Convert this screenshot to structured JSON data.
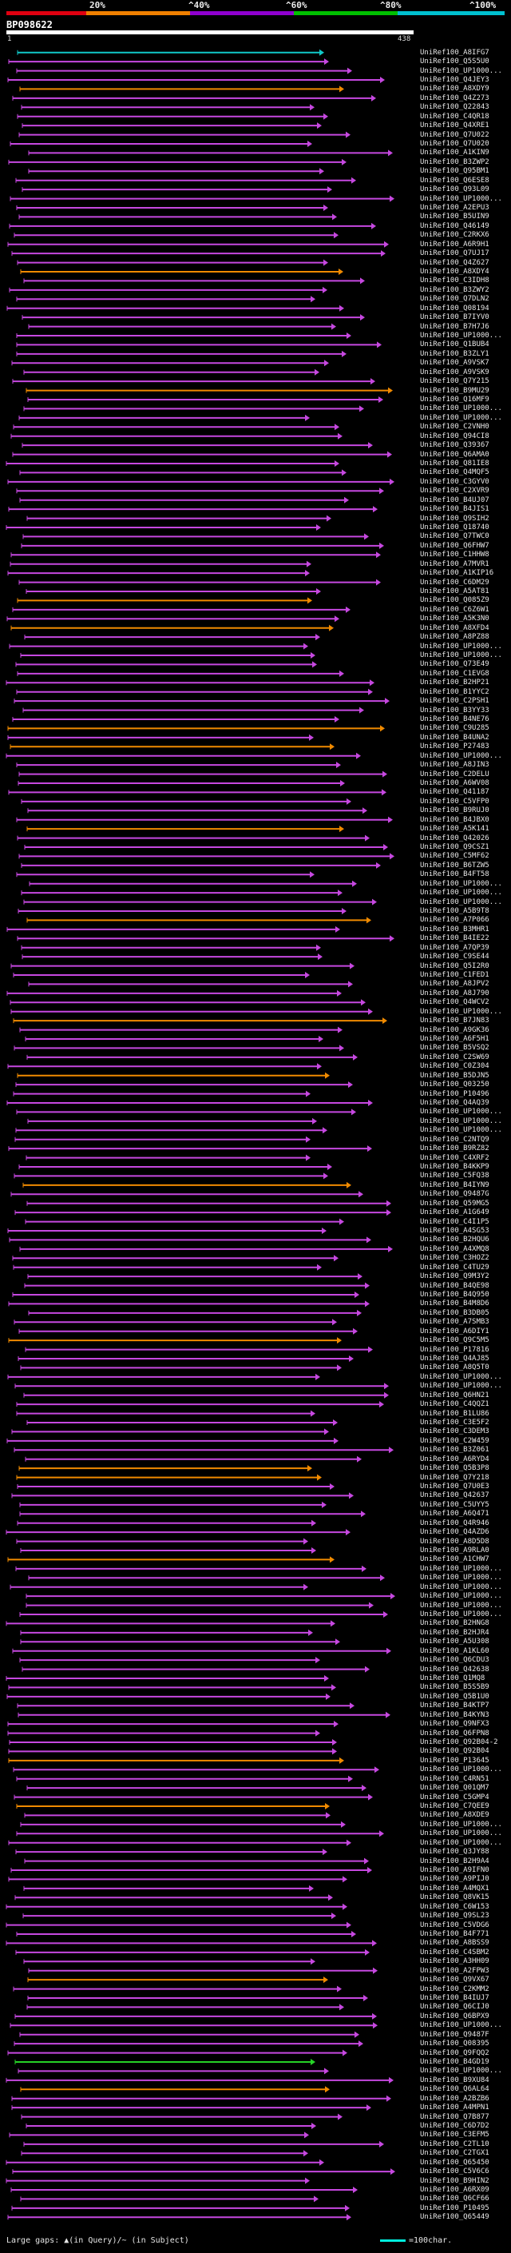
{
  "header": {
    "scale_labels": [
      "20%",
      "^40%",
      "^60%",
      "^80%",
      "^100%"
    ],
    "scale_colors": [
      "#e00010",
      "#f08000",
      "#9000d0",
      "#00c000",
      "#00c0d0"
    ],
    "query_id": "BP098622",
    "query_start": "1",
    "query_end": "438"
  },
  "hits": [
    {
      "name": "UniRef100_A8IFG7",
      "color": "#11c9c9"
    },
    {
      "name": "UniRef100_Q5S5U0",
      "color": "#c648e0"
    },
    {
      "name": "UniRef100_UP1000...",
      "color": "#c648e0"
    },
    {
      "name": "UniRef100_Q4JEY3",
      "color": "#c648e0"
    },
    {
      "name": "UniRef100_A8XDY9",
      "color": "#f08a00"
    },
    {
      "name": "UniRef100_Q4Z273",
      "color": "#c648e0"
    },
    {
      "name": "UniRef100_Q22843",
      "color": "#c648e0"
    },
    {
      "name": "UniRef100_C4QR18",
      "color": "#c648e0"
    },
    {
      "name": "UniRef100_Q4XRE1",
      "color": "#c648e0"
    },
    {
      "name": "UniRef100_Q7U022",
      "color": "#c648e0"
    },
    {
      "name": "UniRef100_Q7U020",
      "color": "#c648e0"
    },
    {
      "name": "UniRef100_A1KIN9",
      "color": "#c648e0"
    },
    {
      "name": "UniRef100_B3ZWP2",
      "color": "#c648e0"
    },
    {
      "name": "UniRef100_Q95BM1",
      "color": "#c648e0"
    },
    {
      "name": "UniRef100_Q6ESE8",
      "color": "#c648e0"
    },
    {
      "name": "UniRef100_Q93L09",
      "color": "#c648e0"
    },
    {
      "name": "UniRef100_UP1000...",
      "color": "#c648e0"
    },
    {
      "name": "UniRef100_A2EPU3",
      "color": "#c648e0"
    },
    {
      "name": "UniRef100_B5UIN9",
      "color": "#c648e0"
    },
    {
      "name": "UniRef100_Q46149",
      "color": "#c648e0"
    },
    {
      "name": "UniRef100_C2RKX6",
      "color": "#c648e0"
    },
    {
      "name": "UniRef100_A6R9H1",
      "color": "#c648e0"
    },
    {
      "name": "UniRef100_Q7UJ17",
      "color": "#c648e0"
    },
    {
      "name": "UniRef100_Q4Z627",
      "color": "#c648e0"
    },
    {
      "name": "UniRef100_A8XDY4",
      "color": "#f08a00"
    },
    {
      "name": "UniRef100_C3IDH8",
      "color": "#c648e0"
    },
    {
      "name": "UniRef100_B3ZWY2",
      "color": "#c648e0"
    },
    {
      "name": "UniRef100_Q7DLN2",
      "color": "#c648e0"
    },
    {
      "name": "UniRef100_Q08194",
      "color": "#c648e0"
    },
    {
      "name": "UniRef100_B7IYV0",
      "color": "#c648e0"
    },
    {
      "name": "UniRef100_B7H7J6",
      "color": "#c648e0"
    },
    {
      "name": "UniRef100_UP1000...",
      "color": "#c648e0"
    },
    {
      "name": "UniRef100_Q1BUB4",
      "color": "#c648e0"
    },
    {
      "name": "UniRef100_B3ZLY1",
      "color": "#c648e0"
    },
    {
      "name": "UniRef100_A9VSK7",
      "color": "#c648e0"
    },
    {
      "name": "UniRef100_A9VSK9",
      "color": "#c648e0"
    },
    {
      "name": "UniRef100_Q7Y215",
      "color": "#c648e0"
    },
    {
      "name": "UniRef100_B9MU29",
      "color": "#f08a00"
    },
    {
      "name": "UniRef100_Q16MF9",
      "color": "#c648e0"
    },
    {
      "name": "UniRef100_UP1000...",
      "color": "#c648e0"
    },
    {
      "name": "UniRef100_UP1000...",
      "color": "#c648e0"
    },
    {
      "name": "UniRef100_C2VNH0",
      "color": "#c648e0"
    },
    {
      "name": "UniRef100_Q94CI8",
      "color": "#c648e0"
    },
    {
      "name": "UniRef100_Q39367",
      "color": "#c648e0"
    },
    {
      "name": "UniRef100_Q6AMA0",
      "color": "#c648e0"
    },
    {
      "name": "UniRef100_Q81IE8",
      "color": "#c648e0"
    },
    {
      "name": "UniRef100_Q4MQF5",
      "color": "#c648e0"
    },
    {
      "name": "UniRef100_C3GYV0",
      "color": "#c648e0"
    },
    {
      "name": "UniRef100_C2XVR9",
      "color": "#c648e0"
    },
    {
      "name": "UniRef100_B4UJ07",
      "color": "#c648e0"
    },
    {
      "name": "UniRef100_B4JIS1",
      "color": "#c648e0"
    },
    {
      "name": "UniRef100_Q9SIH2",
      "color": "#c648e0"
    },
    {
      "name": "UniRef100_Q18740",
      "color": "#c648e0"
    },
    {
      "name": "UniRef100_Q7TWC0",
      "color": "#c648e0"
    },
    {
      "name": "UniRef100_Q6FHW7",
      "color": "#c648e0"
    },
    {
      "name": "UniRef100_C1HHW8",
      "color": "#c648e0"
    },
    {
      "name": "UniRef100_A7MVR1",
      "color": "#c648e0"
    },
    {
      "name": "UniRef100_A1KIP16",
      "color": "#c648e0"
    },
    {
      "name": "UniRef100_C6DM29",
      "color": "#c648e0"
    },
    {
      "name": "UniRef100_A5AT81",
      "color": "#c648e0"
    },
    {
      "name": "UniRef100_Q085Z9",
      "color": "#f08a00"
    },
    {
      "name": "UniRef100_C6Z6W1",
      "color": "#c648e0"
    },
    {
      "name": "UniRef100_A5K3N0",
      "color": "#c648e0"
    },
    {
      "name": "UniRef100_A8XFD4",
      "color": "#f08a00"
    },
    {
      "name": "UniRef100_A8PZ88",
      "color": "#c648e0"
    },
    {
      "name": "UniRef100_UP1000...",
      "color": "#c648e0"
    },
    {
      "name": "UniRef100_UP1000...",
      "color": "#c648e0"
    },
    {
      "name": "UniRef100_Q73E49",
      "color": "#c648e0"
    },
    {
      "name": "UniRef100_C1EVG8",
      "color": "#c648e0"
    },
    {
      "name": "UniRef100_B2HP21",
      "color": "#c648e0"
    },
    {
      "name": "UniRef100_B1YYC2",
      "color": "#c648e0"
    },
    {
      "name": "UniRef100_C2PSH1",
      "color": "#c648e0"
    },
    {
      "name": "UniRef100_B3YY33",
      "color": "#c648e0"
    },
    {
      "name": "UniRef100_B4NE76",
      "color": "#c648e0"
    },
    {
      "name": "UniRef100_C9U285",
      "color": "#f08a00"
    },
    {
      "name": "UniRef100_B4UNA2",
      "color": "#c648e0"
    },
    {
      "name": "UniRef100_P27483",
      "color": "#f08a00"
    },
    {
      "name": "UniRef100_UP1000...",
      "color": "#c648e0"
    },
    {
      "name": "UniRef100_A8JIN3",
      "color": "#c648e0"
    },
    {
      "name": "UniRef100_C2DELU",
      "color": "#c648e0"
    },
    {
      "name": "UniRef100_A6WV08",
      "color": "#c648e0"
    },
    {
      "name": "UniRef100_Q41187",
      "color": "#c648e0"
    },
    {
      "name": "UniRef100_C5VFP0",
      "color": "#c648e0"
    },
    {
      "name": "UniRef100_B9RUJ0",
      "color": "#c648e0"
    },
    {
      "name": "UniRef100_B4JBX0",
      "color": "#c648e0"
    },
    {
      "name": "UniRef100_A5K141",
      "color": "#f08a00"
    },
    {
      "name": "UniRef100_Q42026",
      "color": "#c648e0"
    },
    {
      "name": "UniRef100_Q9CSZ1",
      "color": "#c648e0"
    },
    {
      "name": "UniRef100_C5MF62",
      "color": "#c648e0"
    },
    {
      "name": "UniRef100_B6TZW5",
      "color": "#c648e0"
    },
    {
      "name": "UniRef100_B4FT58",
      "color": "#c648e0"
    },
    {
      "name": "UniRef100_UP1000...",
      "color": "#c648e0"
    },
    {
      "name": "UniRef100_UP1000...",
      "color": "#c648e0"
    },
    {
      "name": "UniRef100_UP1000...",
      "color": "#c648e0"
    },
    {
      "name": "UniRef100_A5B9T8",
      "color": "#c648e0"
    },
    {
      "name": "UniRef100_A7P066",
      "color": "#f08a00"
    },
    {
      "name": "UniRef100_B3MHR1",
      "color": "#c648e0"
    },
    {
      "name": "UniRef100_B4IE22",
      "color": "#c648e0"
    },
    {
      "name": "UniRef100_A7QP39",
      "color": "#c648e0"
    },
    {
      "name": "UniRef100_C9SE44",
      "color": "#c648e0"
    },
    {
      "name": "UniRef100_Q5I2R0",
      "color": "#c648e0"
    },
    {
      "name": "UniRef100_C1FED1",
      "color": "#c648e0"
    },
    {
      "name": "UniRef100_A8JPV2",
      "color": "#c648e0"
    },
    {
      "name": "UniRef100_A8J790",
      "color": "#c648e0"
    },
    {
      "name": "UniRef100_Q4WCV2",
      "color": "#c648e0"
    },
    {
      "name": "UniRef100_UP1000...",
      "color": "#c648e0"
    },
    {
      "name": "UniRef100_B7JN83",
      "color": "#f08a00"
    },
    {
      "name": "UniRef100_A9GK36",
      "color": "#c648e0"
    },
    {
      "name": "UniRef100_A6F5H1",
      "color": "#c648e0"
    },
    {
      "name": "UniRef100_B5VSQ2",
      "color": "#c648e0"
    },
    {
      "name": "UniRef100_C2SW69",
      "color": "#c648e0"
    },
    {
      "name": "UniRef100_C0Z304",
      "color": "#c648e0"
    },
    {
      "name": "UniRef100_B5DJN5",
      "color": "#f08a00"
    },
    {
      "name": "UniRef100_Q03250",
      "color": "#c648e0"
    },
    {
      "name": "UniRef100_P10496",
      "color": "#c648e0"
    },
    {
      "name": "UniRef100_Q4AQ39",
      "color": "#c648e0"
    },
    {
      "name": "UniRef100_UP1000...",
      "color": "#c648e0"
    },
    {
      "name": "UniRef100_UP1000...",
      "color": "#c648e0"
    },
    {
      "name": "UniRef100_UP1000...",
      "color": "#c648e0"
    },
    {
      "name": "UniRef100_C2NTQ9",
      "color": "#c648e0"
    },
    {
      "name": "UniRef100_B9RZ82",
      "color": "#c648e0"
    },
    {
      "name": "UniRef100_C4XRF2",
      "color": "#c648e0"
    },
    {
      "name": "UniRef100_B4KKP9",
      "color": "#c648e0"
    },
    {
      "name": "UniRef100_C5FQ38",
      "color": "#c648e0"
    },
    {
      "name": "UniRef100_B4IYN9",
      "color": "#f08a00"
    },
    {
      "name": "UniRef100_Q9487G",
      "color": "#c648e0"
    },
    {
      "name": "UniRef100_Q59MG5",
      "color": "#c648e0"
    },
    {
      "name": "UniRef100_A1G649",
      "color": "#c648e0"
    },
    {
      "name": "UniRef100_C4I1P5",
      "color": "#c648e0"
    },
    {
      "name": "UniRef100_A4SG53",
      "color": "#c648e0"
    },
    {
      "name": "UniRef100_B2HQU6",
      "color": "#c648e0"
    },
    {
      "name": "UniRef100_A4XMQ8",
      "color": "#c648e0"
    },
    {
      "name": "UniRef100_C3HOZ2",
      "color": "#c648e0"
    },
    {
      "name": "UniRef100_C4TU29",
      "color": "#c648e0"
    },
    {
      "name": "UniRef100_Q9M3Y2",
      "color": "#c648e0"
    },
    {
      "name": "UniRef100_B4QE98",
      "color": "#c648e0"
    },
    {
      "name": "UniRef100_B4Q950",
      "color": "#c648e0"
    },
    {
      "name": "UniRef100_B4M8D6",
      "color": "#c648e0"
    },
    {
      "name": "UniRef100_B3DB05",
      "color": "#c648e0"
    },
    {
      "name": "UniRef100_A7SMB3",
      "color": "#c648e0"
    },
    {
      "name": "UniRef100_A6DIY1",
      "color": "#c648e0"
    },
    {
      "name": "UniRef100_Q9C5M5",
      "color": "#f08a00"
    },
    {
      "name": "UniRef100_P17816",
      "color": "#c648e0"
    },
    {
      "name": "UniRef100_Q4AJ85",
      "color": "#c648e0"
    },
    {
      "name": "UniRef100_A8Q5T0",
      "color": "#c648e0"
    },
    {
      "name": "UniRef100_UP1000...",
      "color": "#c648e0"
    },
    {
      "name": "UniRef100_UP1000...",
      "color": "#c648e0"
    },
    {
      "name": "UniRef100_Q6HN21",
      "color": "#c648e0"
    },
    {
      "name": "UniRef100_C4QQZ1",
      "color": "#c648e0"
    },
    {
      "name": "UniRef100_B1LU86",
      "color": "#c648e0"
    },
    {
      "name": "UniRef100_C3E5F2",
      "color": "#c648e0"
    },
    {
      "name": "UniRef100_C3DEM3",
      "color": "#c648e0"
    },
    {
      "name": "UniRef100_C2W459",
      "color": "#c648e0"
    },
    {
      "name": "UniRef100_B3Z061",
      "color": "#c648e0"
    },
    {
      "name": "UniRef100_A6RYD4",
      "color": "#c648e0"
    },
    {
      "name": "UniRef100_Q5B3P8",
      "color": "#f08a00"
    },
    {
      "name": "UniRef100_Q7Y218",
      "color": "#f08a00"
    },
    {
      "name": "UniRef100_Q7U0E3",
      "color": "#c648e0"
    },
    {
      "name": "UniRef100_Q42637",
      "color": "#c648e0"
    },
    {
      "name": "UniRef100_C5UYY5",
      "color": "#c648e0"
    },
    {
      "name": "UniRef100_A6Q471",
      "color": "#c648e0"
    },
    {
      "name": "UniRef100_Q4R946",
      "color": "#c648e0"
    },
    {
      "name": "UniRef100_Q4AZD6",
      "color": "#c648e0"
    },
    {
      "name": "UniRef100_A8D5D8",
      "color": "#c648e0"
    },
    {
      "name": "UniRef100_A9RLA0",
      "color": "#c648e0"
    },
    {
      "name": "UniRef100_A1CHW7",
      "color": "#f08a00"
    },
    {
      "name": "UniRef100_UP1000...",
      "color": "#c648e0"
    },
    {
      "name": "UniRef100_UP1000...",
      "color": "#c648e0"
    },
    {
      "name": "UniRef100_UP1000...",
      "color": "#c648e0"
    },
    {
      "name": "UniRef100_UP1000...",
      "color": "#c648e0"
    },
    {
      "name": "UniRef100_UP1000...",
      "color": "#c648e0"
    },
    {
      "name": "UniRef100_UP1000...",
      "color": "#c648e0"
    },
    {
      "name": "UniRef100_B2HNG8",
      "color": "#c648e0"
    },
    {
      "name": "UniRef100_B2HJR4",
      "color": "#c648e0"
    },
    {
      "name": "UniRef100_A5U308",
      "color": "#c648e0"
    },
    {
      "name": "UniRef100_A1KL60",
      "color": "#c648e0"
    },
    {
      "name": "UniRef100_Q6CDU3",
      "color": "#c648e0"
    },
    {
      "name": "UniRef100_Q42638",
      "color": "#c648e0"
    },
    {
      "name": "UniRef100_Q1MQ8",
      "color": "#c648e0"
    },
    {
      "name": "UniRef100_B5S5B9",
      "color": "#c648e0"
    },
    {
      "name": "UniRef100_Q5B1U0",
      "color": "#c648e0"
    },
    {
      "name": "UniRef100_B4KTP7",
      "color": "#c648e0"
    },
    {
      "name": "UniRef100_B4KYN3",
      "color": "#c648e0"
    },
    {
      "name": "UniRef100_Q9NFX3",
      "color": "#c648e0"
    },
    {
      "name": "UniRef100_Q6FPN8",
      "color": "#c648e0"
    },
    {
      "name": "UniRef100_Q92B04-2",
      "color": "#c648e0"
    },
    {
      "name": "UniRef100_Q92B04",
      "color": "#c648e0"
    },
    {
      "name": "UniRef100_P13645",
      "color": "#f08a00"
    },
    {
      "name": "UniRef100_UP1000...",
      "color": "#c648e0"
    },
    {
      "name": "UniRef100_C4RN51",
      "color": "#c648e0"
    },
    {
      "name": "UniRef100_Q01QM7",
      "color": "#c648e0"
    },
    {
      "name": "UniRef100_C5GMP4",
      "color": "#c648e0"
    },
    {
      "name": "UniRef100_C7QEE9",
      "color": "#f08a00"
    },
    {
      "name": "UniRef100_A8XDE9",
      "color": "#c648e0"
    },
    {
      "name": "UniRef100_UP1000...",
      "color": "#c648e0"
    },
    {
      "name": "UniRef100_UP1000...",
      "color": "#c648e0"
    },
    {
      "name": "UniRef100_UP1000...",
      "color": "#c648e0"
    },
    {
      "name": "UniRef100_Q3JY88",
      "color": "#c648e0"
    },
    {
      "name": "UniRef100_B2H9A4",
      "color": "#c648e0"
    },
    {
      "name": "UniRef100_A9IFN0",
      "color": "#c648e0"
    },
    {
      "name": "UniRef100_A9PIJ0",
      "color": "#c648e0"
    },
    {
      "name": "UniRef100_A4MQX1",
      "color": "#c648e0"
    },
    {
      "name": "UniRef100_Q8VK15",
      "color": "#c648e0"
    },
    {
      "name": "UniRef100_C6W153",
      "color": "#c648e0"
    },
    {
      "name": "UniRef100_Q9SL23",
      "color": "#c648e0"
    },
    {
      "name": "UniRef100_C5VDG6",
      "color": "#c648e0"
    },
    {
      "name": "UniRef100_B4F771",
      "color": "#c648e0"
    },
    {
      "name": "UniRef100_A8BSS9",
      "color": "#c648e0"
    },
    {
      "name": "UniRef100_C4SBM2",
      "color": "#c648e0"
    },
    {
      "name": "UniRef100_A3HH09",
      "color": "#c648e0"
    },
    {
      "name": "UniRef100_A2FPW3",
      "color": "#c648e0"
    },
    {
      "name": "UniRef100_Q9VX67",
      "color": "#f08a00"
    },
    {
      "name": "UniRef100_C2KMM2",
      "color": "#c648e0"
    },
    {
      "name": "UniRef100_B4IUJ7",
      "color": "#c648e0"
    },
    {
      "name": "UniRef100_Q6CIJ0",
      "color": "#c648e0"
    },
    {
      "name": "UniRef100_Q6BPX9",
      "color": "#c648e0"
    },
    {
      "name": "UniRef100_UP1000...",
      "color": "#c648e0"
    },
    {
      "name": "UniRef100_Q9487F",
      "color": "#c648e0"
    },
    {
      "name": "UniRef100_Q08395",
      "color": "#c648e0"
    },
    {
      "name": "UniRef100_Q9FQQ2",
      "color": "#c648e0"
    },
    {
      "name": "UniRef100_B4GD19",
      "color": "#27d427"
    },
    {
      "name": "UniRef100_UP1000...",
      "color": "#c648e0"
    },
    {
      "name": "UniRef100_B9XU84",
      "color": "#c648e0"
    },
    {
      "name": "UniRef100_Q6AL64",
      "color": "#f08a00"
    },
    {
      "name": "UniRef100_A2BZB6",
      "color": "#c648e0"
    },
    {
      "name": "UniRef100_A4MPN1",
      "color": "#c648e0"
    },
    {
      "name": "UniRef100_Q7B877",
      "color": "#c648e0"
    },
    {
      "name": "UniRef100_C6D7D2",
      "color": "#c648e0"
    },
    {
      "name": "UniRef100_C3EFM5",
      "color": "#c648e0"
    },
    {
      "name": "UniRef100_C2TL10",
      "color": "#c648e0"
    },
    {
      "name": "UniRef100_C2TGX1",
      "color": "#c648e0"
    },
    {
      "name": "UniRef100_Q65450",
      "color": "#c648e0"
    },
    {
      "name": "UniRef100_C5V6C6",
      "color": "#c648e0"
    },
    {
      "name": "UniRef100_B9HIN2",
      "color": "#c648e0"
    },
    {
      "name": "UniRef100_A6RX09",
      "color": "#c648e0"
    },
    {
      "name": "UniRef100_Q6CF66",
      "color": "#c648e0"
    },
    {
      "name": "UniRef100_P10495",
      "color": "#c648e0"
    },
    {
      "name": "UniRef100_Q65449",
      "color": "#c648e0"
    }
  ],
  "footer": {
    "legend": "Large gaps: ▲(in Query)/~ (in Subject)",
    "scale": "=100char."
  }
}
